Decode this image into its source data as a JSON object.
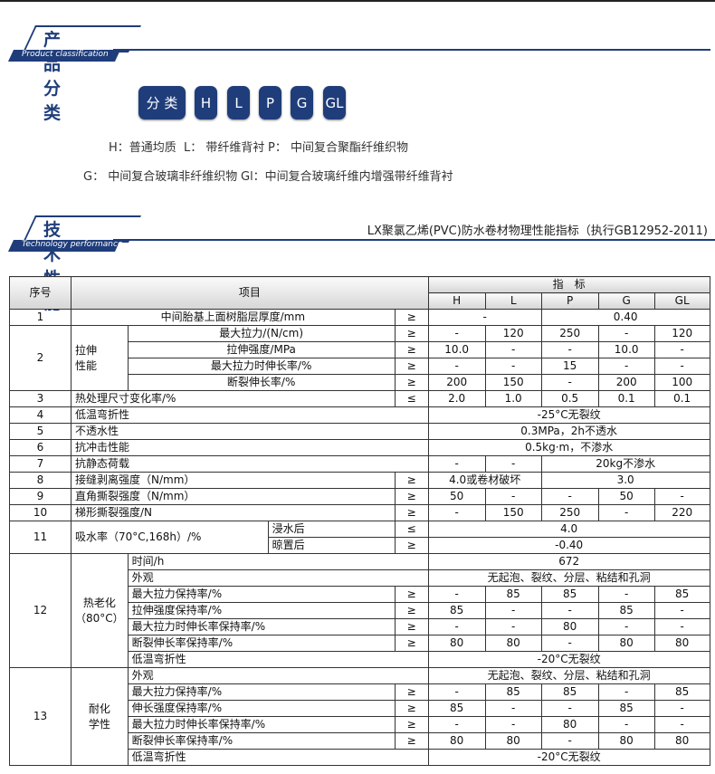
{
  "section1": {
    "title": "产品分类",
    "subtitle": "Product classification"
  },
  "classification": {
    "label": "分 类",
    "codes": [
      "H",
      "L",
      "P",
      "G",
      "GL"
    ]
  },
  "definitions": [
    "H：普通均质",
    "L： 带纤维背衬",
    "P： 中间复合聚酯纤维织物",
    "G： 中间复合玻璃非纤维织物",
    "Gl：中间复合玻璃纤维内增强带纤维背衬"
  ],
  "section2": {
    "title": "技术性能",
    "subtitle": "Technology performance"
  },
  "standard_title": "LX聚氯乙烯(PVC)防水卷材物理性能指标（执行GB12952-2011)",
  "accent_color": "#1f3d7a",
  "table": {
    "rows": [
      [
        {
          "t": "序号",
          "rs": 2,
          "h": 1
        },
        {
          "t": "项目",
          "cs": 4,
          "rs": 2,
          "h": 1
        },
        {
          "t": "指　标",
          "cs": 5,
          "h": 1
        }
      ],
      [
        {
          "t": "H",
          "h": 1
        },
        {
          "t": "L",
          "h": 1
        },
        {
          "t": "P",
          "h": 1
        },
        {
          "t": "G",
          "h": 1
        },
        {
          "t": "GL",
          "h": 1
        }
      ],
      [
        {
          "t": "1"
        },
        {
          "t": "中间胎基上面树脂层厚度/mm",
          "cs": 3
        },
        {
          "t": "≥"
        },
        {
          "t": "-",
          "cs": 2
        },
        {
          "t": "0.40",
          "cs": 3
        }
      ],
      [
        {
          "t": "2",
          "rs": 4
        },
        {
          "t": "拉伸\n性能",
          "rs": 4,
          "left": 1
        },
        {
          "t": "最大拉力/(N/cm)",
          "cs": 2
        },
        {
          "t": "≥"
        },
        {
          "t": "-"
        },
        {
          "t": "120"
        },
        {
          "t": "250"
        },
        {
          "t": "-"
        },
        {
          "t": "120"
        }
      ],
      [
        {
          "t": "拉伸强度/MPa",
          "cs": 2
        },
        {
          "t": "≥"
        },
        {
          "t": "10.0"
        },
        {
          "t": "-"
        },
        {
          "t": "-"
        },
        {
          "t": "10.0"
        },
        {
          "t": "-"
        }
      ],
      [
        {
          "t": "最大拉力时伸长率/%",
          "cs": 2
        },
        {
          "t": "≥"
        },
        {
          "t": "-"
        },
        {
          "t": "-"
        },
        {
          "t": "15"
        },
        {
          "t": "-"
        },
        {
          "t": "-"
        }
      ],
      [
        {
          "t": "断裂伸长率/%",
          "cs": 2
        },
        {
          "t": "≥"
        },
        {
          "t": "200"
        },
        {
          "t": "150"
        },
        {
          "t": "-"
        },
        {
          "t": "200"
        },
        {
          "t": "100"
        }
      ],
      [
        {
          "t": "3"
        },
        {
          "t": "热处理尺寸变化率/%",
          "cs": 3,
          "left": 1
        },
        {
          "t": "≤"
        },
        {
          "t": "2.0"
        },
        {
          "t": "1.0"
        },
        {
          "t": "0.5"
        },
        {
          "t": "0.1"
        },
        {
          "t": "0.1"
        }
      ],
      [
        {
          "t": "4"
        },
        {
          "t": "低温弯折性",
          "cs": 4,
          "left": 1
        },
        {
          "t": "-25°C无裂纹",
          "cs": 5
        }
      ],
      [
        {
          "t": "5"
        },
        {
          "t": "不透水性",
          "cs": 4,
          "left": 1
        },
        {
          "t": "0.3MPa，2h不透水",
          "cs": 5
        }
      ],
      [
        {
          "t": "6"
        },
        {
          "t": "抗冲击性能",
          "cs": 4,
          "left": 1
        },
        {
          "t": "0.5kg·m，不渗水",
          "cs": 5
        }
      ],
      [
        {
          "t": "7"
        },
        {
          "t": "抗静态荷载",
          "cs": 4,
          "left": 1
        },
        {
          "t": "-"
        },
        {
          "t": "-"
        },
        {
          "t": "20kg不渗水",
          "cs": 3
        }
      ],
      [
        {
          "t": "8"
        },
        {
          "t": "接缝剥离强度（N/mm）",
          "cs": 3,
          "left": 1
        },
        {
          "t": "≥"
        },
        {
          "t": "4.0或卷材破坏",
          "cs": 2
        },
        {
          "t": "3.0",
          "cs": 3
        }
      ],
      [
        {
          "t": "9"
        },
        {
          "t": "直角撕裂强度（N/mm）",
          "cs": 3,
          "left": 1
        },
        {
          "t": "≥"
        },
        {
          "t": "50"
        },
        {
          "t": "-"
        },
        {
          "t": "-"
        },
        {
          "t": "50"
        },
        {
          "t": "-"
        }
      ],
      [
        {
          "t": "10"
        },
        {
          "t": "梯形撕裂强度/N",
          "cs": 3,
          "left": 1
        },
        {
          "t": "≥"
        },
        {
          "t": "-"
        },
        {
          "t": "150"
        },
        {
          "t": "250"
        },
        {
          "t": "-"
        },
        {
          "t": "220"
        }
      ],
      [
        {
          "t": "11",
          "rs": 2
        },
        {
          "t": "吸水率（70°C,168h）/%",
          "cs": 2,
          "rs": 2,
          "left": 1
        },
        {
          "t": "浸水后",
          "left": 1
        },
        {
          "t": "≤"
        },
        {
          "t": "4.0",
          "cs": 5
        }
      ],
      [
        {
          "t": "晾置后",
          "left": 1
        },
        {
          "t": "≥"
        },
        {
          "t": "-0.40",
          "cs": 5
        }
      ],
      [
        {
          "t": "12",
          "rs": 7
        },
        {
          "t": "热老化\n（80°C）",
          "rs": 7
        },
        {
          "t": "时间/h",
          "cs": 3,
          "left": 1
        },
        {
          "t": "672",
          "cs": 5
        }
      ],
      [
        {
          "t": "外观",
          "cs": 3,
          "left": 1
        },
        {
          "t": "无起泡、裂纹、分层、粘结和孔洞",
          "cs": 5
        }
      ],
      [
        {
          "t": "最大拉力保持率/%",
          "cs": 2,
          "left": 1
        },
        {
          "t": "≥"
        },
        {
          "t": "-"
        },
        {
          "t": "85"
        },
        {
          "t": "85"
        },
        {
          "t": "-"
        },
        {
          "t": "85"
        }
      ],
      [
        {
          "t": "拉伸强度保持率/%",
          "cs": 2,
          "left": 1
        },
        {
          "t": "≥"
        },
        {
          "t": "85"
        },
        {
          "t": "-"
        },
        {
          "t": "-"
        },
        {
          "t": "85"
        },
        {
          "t": "-"
        }
      ],
      [
        {
          "t": "最大拉力时伸长率保持率/%",
          "cs": 2,
          "left": 1
        },
        {
          "t": "≥"
        },
        {
          "t": "-"
        },
        {
          "t": "-"
        },
        {
          "t": "80"
        },
        {
          "t": "-"
        },
        {
          "t": "-"
        }
      ],
      [
        {
          "t": "断裂伸长率保持率/%",
          "cs": 2,
          "left": 1
        },
        {
          "t": "≥"
        },
        {
          "t": "80"
        },
        {
          "t": "80"
        },
        {
          "t": "-"
        },
        {
          "t": "80"
        },
        {
          "t": "80"
        }
      ],
      [
        {
          "t": "低温弯折性",
          "cs": 3,
          "left": 1
        },
        {
          "t": "-20°C无裂纹",
          "cs": 5
        }
      ],
      [
        {
          "t": "13",
          "rs": 6
        },
        {
          "t": "耐化\n学性",
          "rs": 6
        },
        {
          "t": "外观",
          "cs": 3,
          "left": 1
        },
        {
          "t": "无起泡、裂纹、分层、粘结和孔洞",
          "cs": 5
        }
      ],
      [
        {
          "t": "最大拉力保持率/%",
          "cs": 2,
          "left": 1
        },
        {
          "t": "≥"
        },
        {
          "t": "-"
        },
        {
          "t": "85"
        },
        {
          "t": "85"
        },
        {
          "t": "-"
        },
        {
          "t": "85"
        }
      ],
      [
        {
          "t": "伸长强度保持率/%",
          "cs": 2,
          "left": 1
        },
        {
          "t": "≥"
        },
        {
          "t": "85"
        },
        {
          "t": "-"
        },
        {
          "t": "-"
        },
        {
          "t": "85"
        },
        {
          "t": "-"
        }
      ],
      [
        {
          "t": "最大拉力时伸长率保持率/%",
          "cs": 2,
          "left": 1
        },
        {
          "t": "≥"
        },
        {
          "t": "-"
        },
        {
          "t": "-"
        },
        {
          "t": "80"
        },
        {
          "t": "-"
        },
        {
          "t": "-"
        }
      ],
      [
        {
          "t": "断裂伸长率保持率/%",
          "cs": 2,
          "left": 1
        },
        {
          "t": "≥"
        },
        {
          "t": "80"
        },
        {
          "t": "80"
        },
        {
          "t": "-"
        },
        {
          "t": "80"
        },
        {
          "t": "80"
        }
      ],
      [
        {
          "t": "低温弯折性",
          "cs": 3,
          "left": 1
        },
        {
          "t": "-20°C无裂纹",
          "cs": 5
        }
      ]
    ]
  }
}
